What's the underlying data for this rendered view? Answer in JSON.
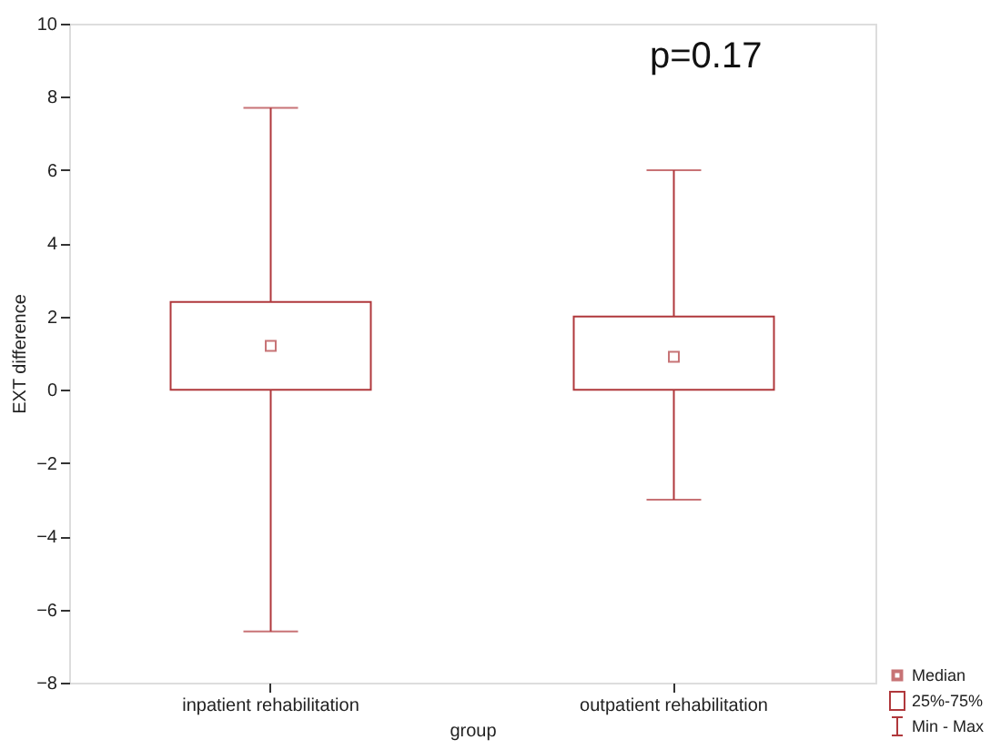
{
  "chart_data": {
    "type": "box",
    "categories": [
      "inpatient rehabilitation",
      "outpatient rehabilitation"
    ],
    "boxes": [
      {
        "low": -6.6,
        "q1": 0,
        "median": 1.2,
        "q3": 2.4,
        "high": 7.7
      },
      {
        "low": -3.0,
        "q1": 0,
        "median": 0.9,
        "q3": 2.0,
        "high": 6.0
      }
    ],
    "color": "#b0383c",
    "xlabel": "group",
    "ylabel": "EXT difference",
    "ylim": [
      -8,
      10
    ],
    "yticks": [
      -8,
      -6,
      -4,
      -2,
      0,
      2,
      4,
      6,
      8,
      10
    ],
    "grid": false,
    "marker": "square",
    "annotations": [
      "p=0.17",
      "Median",
      "25%-75%",
      "Min - Max"
    ]
  }
}
